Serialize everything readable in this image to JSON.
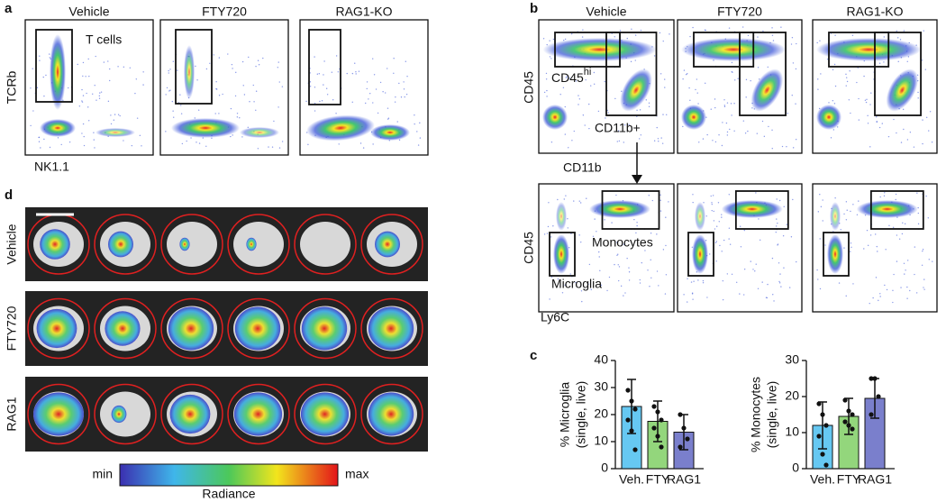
{
  "a": {
    "label": "a",
    "titles": [
      "Vehicle",
      "FTY720",
      "RAG1-KO"
    ],
    "y_label": "TCRb",
    "x_label": "NK1.1",
    "gate_label": "T cells"
  },
  "b": {
    "label": "b",
    "titles": [
      "Vehicle",
      "FTY720",
      "RAG1-KO"
    ],
    "top_y_label": "CD45",
    "top_x_label": "CD11b",
    "gate_hi": "CD45",
    "gate_hi_sup": "hi",
    "gate_cd11b": "CD11b+",
    "bottom_y_label": "CD45",
    "bottom_x_label": "Ly6C",
    "gate_monocytes": "Monocytes",
    "gate_microglia": "Microglia"
  },
  "c": {
    "label": "c"
  },
  "d": {
    "label": "d",
    "row_labels": [
      "Vehicle",
      "FTY720",
      "RAG1"
    ],
    "scale_min": "min",
    "scale_max": "max",
    "scale_label": "Radiance"
  },
  "chart_data": [
    {
      "type": "bar",
      "y_label": [
        "% Microglia",
        "(single, live)"
      ],
      "categories": [
        "Veh.",
        "FTY",
        "RAG1"
      ],
      "values": [
        23,
        17.5,
        13.5
      ],
      "errors": [
        10,
        7.5,
        6.5
      ],
      "points": [
        [
          29,
          25,
          22,
          18,
          14,
          7
        ],
        [
          23,
          21,
          18,
          15,
          12,
          8
        ],
        [
          20,
          15,
          11,
          8
        ]
      ],
      "colors": [
        "#66c8f2",
        "#93d67c",
        "#7a7fcc"
      ],
      "ylim": [
        0,
        40
      ],
      "yticks": [
        0,
        10,
        20,
        30,
        40
      ]
    },
    {
      "type": "bar",
      "y_label": [
        "% Monocytes",
        "(single, live)"
      ],
      "categories": [
        "Veh.",
        "FTY",
        "RAG1"
      ],
      "values": [
        12,
        14.5,
        19.5
      ],
      "errors": [
        6.5,
        5,
        5.5
      ],
      "points": [
        [
          18,
          15,
          12,
          9,
          4,
          1
        ],
        [
          19,
          16,
          15,
          13,
          12,
          11
        ],
        [
          25,
          25,
          20,
          15
        ]
      ],
      "colors": [
        "#66c8f2",
        "#93d67c",
        "#7a7fcc"
      ],
      "ylim": [
        0,
        30
      ],
      "yticks": [
        0,
        10,
        20,
        30
      ]
    }
  ]
}
